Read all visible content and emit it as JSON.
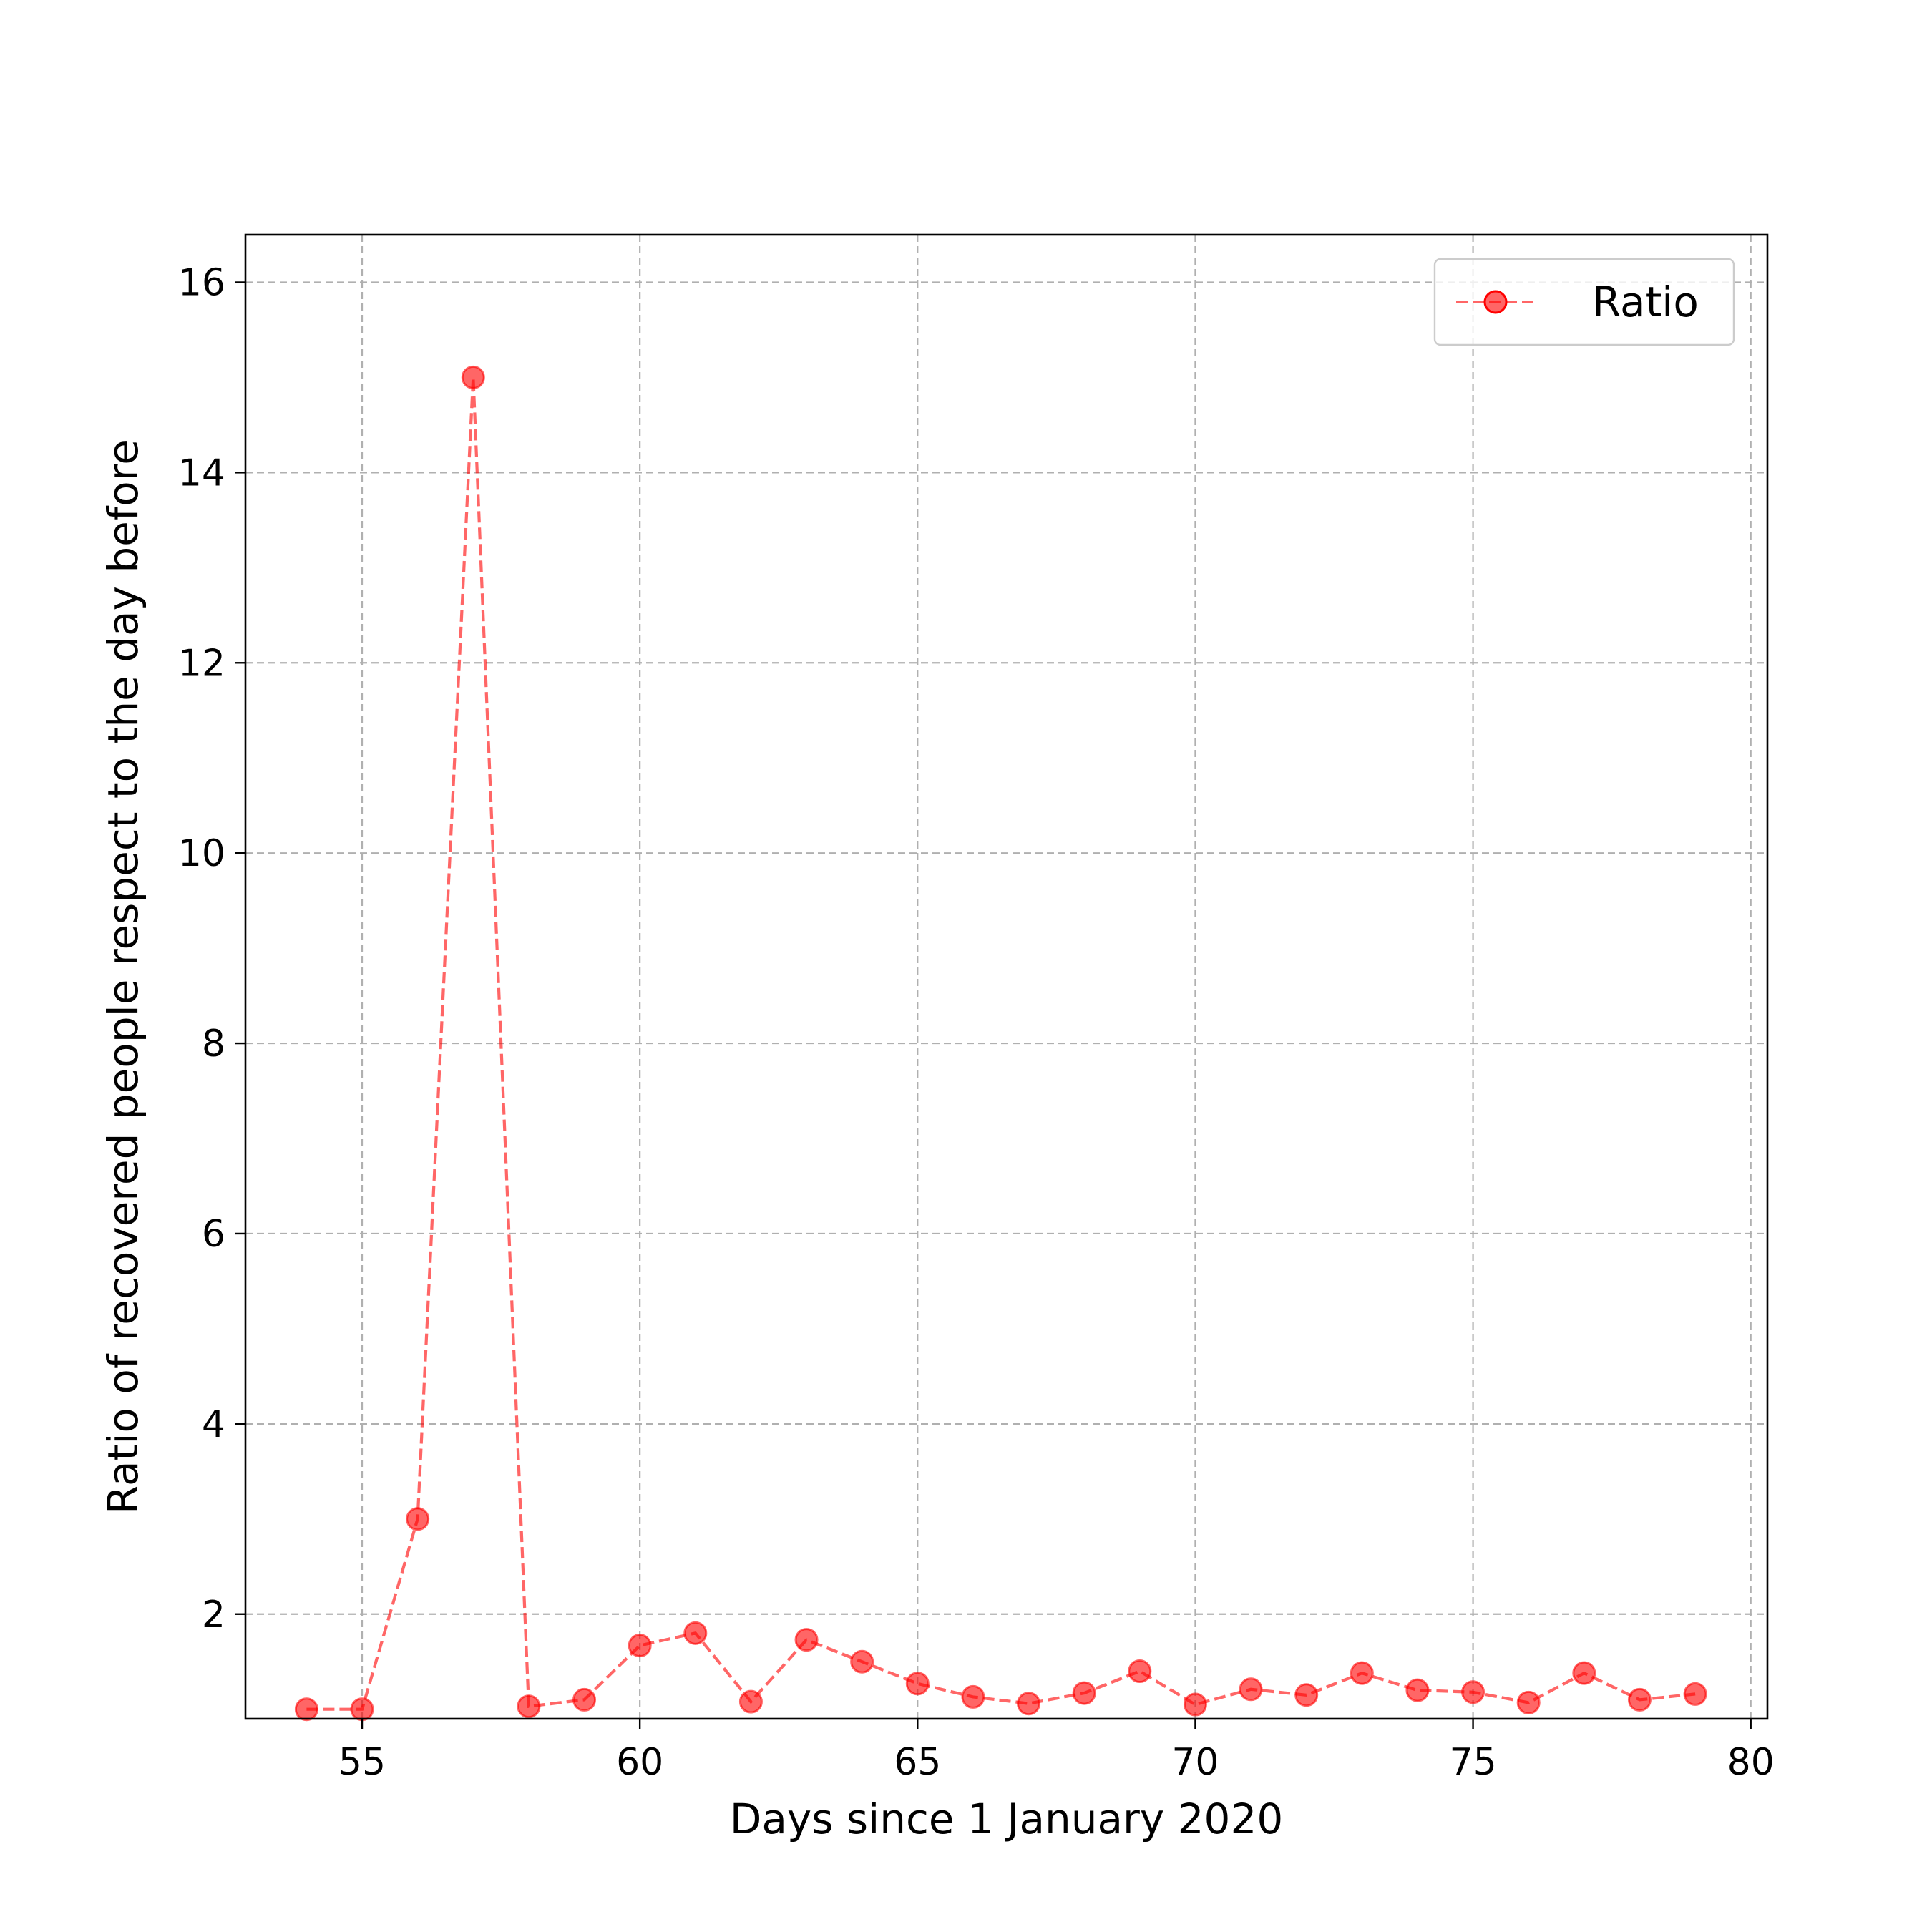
{
  "chart_data": {
    "type": "line",
    "title": "",
    "xlabel": "Days since 1 January 2020",
    "ylabel": "Ratio of recovered people respect to the day before",
    "xlim": [
      52.9,
      80.3
    ],
    "ylim": [
      0.9,
      16.5
    ],
    "xticks": [
      55,
      60,
      65,
      70,
      75,
      80
    ],
    "yticks": [
      2,
      4,
      6,
      8,
      10,
      12,
      14,
      16
    ],
    "grid": true,
    "grid_style": "dashed",
    "legend_position": "top-right",
    "series": [
      {
        "name": "Ratio",
        "color": "#ff0000",
        "line_style": "dashed",
        "marker": "circle",
        "x": [
          54,
          55,
          56,
          57,
          58,
          59,
          60,
          61,
          62,
          63,
          64,
          65,
          66,
          67,
          68,
          69,
          70,
          71,
          72,
          73,
          74,
          75,
          76,
          77,
          78,
          79
        ],
        "y": [
          1.0,
          1.0,
          3.0,
          15.0,
          1.03,
          1.1,
          1.67,
          1.8,
          1.08,
          1.73,
          1.5,
          1.27,
          1.13,
          1.06,
          1.17,
          1.4,
          1.05,
          1.21,
          1.15,
          1.38,
          1.2,
          1.18,
          1.07,
          1.38,
          1.1,
          1.16
        ]
      }
    ]
  }
}
